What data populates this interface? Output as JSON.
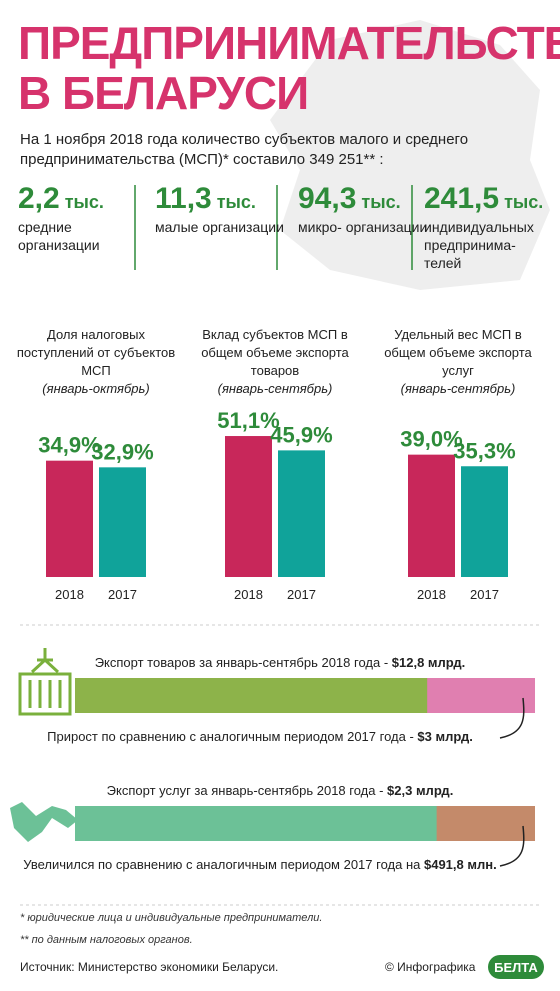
{
  "header": {
    "title_line1": "ПРЕДПРИНИМАТЕЛЬСТВО",
    "title_line2": "В БЕЛАРУСИ"
  },
  "intro": "На 1 ноября 2018 года количество субъектов малого и среднего предпринимательства (МСП)* составило 349 251** :",
  "stats": [
    {
      "value": "2,2",
      "unit": "тыс.",
      "label": "средние организации"
    },
    {
      "value": "11,3",
      "unit": "тыс.",
      "label": "малые организации"
    },
    {
      "value": "94,3",
      "unit": "тыс.",
      "label": "микро- организации"
    },
    {
      "value": "241,5",
      "unit": "тыс.",
      "label": "индивидуальных предпринима- телей"
    }
  ],
  "chart_data": [
    {
      "type": "bar",
      "title": "Доля налоговых поступлений от субъектов МСП",
      "subtitle": "(январь-октябрь)",
      "categories": [
        "2018",
        "2017"
      ],
      "values": [
        34.9,
        32.9
      ],
      "value_labels": [
        "34,9%",
        "32,9%"
      ],
      "colors": [
        "#c8275a",
        "#10a39a"
      ],
      "ylim": [
        0,
        48
      ]
    },
    {
      "type": "bar",
      "title": "Вклад субъектов МСП в общем объеме экспорта товаров",
      "subtitle": "(январь-сентябрь)",
      "categories": [
        "2018",
        "2017"
      ],
      "values": [
        51.1,
        45.9
      ],
      "value_labels": [
        "51,1%",
        "45,9%"
      ],
      "colors": [
        "#c8275a",
        "#10a39a"
      ],
      "ylim": [
        0,
        58
      ]
    },
    {
      "type": "bar",
      "title": "Удельный вес МСП в общем объеме экспорта услуг",
      "subtitle": "(январь-сентябрь)",
      "categories": [
        "2018",
        "2017"
      ],
      "values": [
        39.0,
        35.3
      ],
      "value_labels": [
        "39,0%",
        "35,3%"
      ],
      "colors": [
        "#c8275a",
        "#10a39a"
      ],
      "ylim": [
        0,
        51
      ]
    }
  ],
  "exports": [
    {
      "text": "Экспорт товаров за январь-сентябрь 2018 года - ",
      "total": {
        "value": 12.8,
        "label": "$12,8 млрд."
      },
      "change_text": "Прирост по сравнению с аналогичным периодом 2017 года - ",
      "change": {
        "value": 3,
        "label": "$3 млрд."
      },
      "colors": [
        "#8db34a",
        "#e07fb0"
      ]
    },
    {
      "text": "Экспорт услуг за январь-сентябрь 2018 года - ",
      "total": {
        "value": 2.3,
        "label": "$2,3 млрд."
      },
      "change_text": "Увеличился по сравнению с аналогичным периодом 2017 года на ",
      "change": {
        "value": 0.4918,
        "label": "$491,8 млн."
      },
      "colors": [
        "#6cc197",
        "#c48a6a"
      ]
    }
  ],
  "footnotes": [
    "* юридические лица и индивидуальные предприниматели.",
    "** по данным налоговых органов."
  ],
  "source": "Источник: Министерство экономики Беларуси.",
  "credit": "© Инфографика",
  "logo": "БЕЛТА"
}
